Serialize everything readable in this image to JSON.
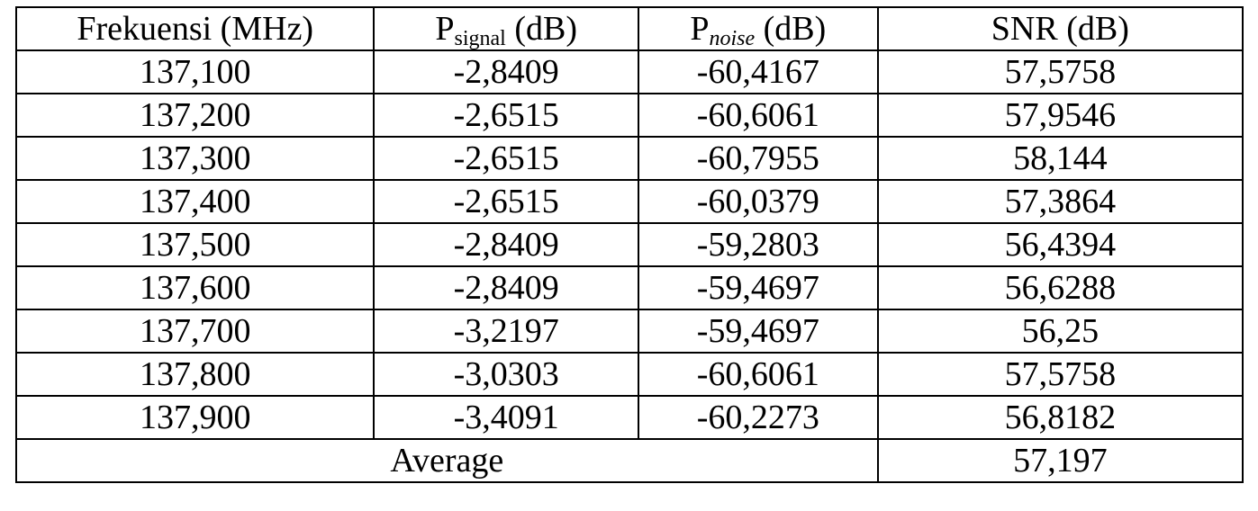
{
  "table": {
    "header": [
      {
        "main": "Frekuensi (MHz)"
      },
      {
        "main": "P",
        "sub": "signal",
        "unit": " (dB)"
      },
      {
        "main": "P",
        "sub": "noise",
        "unit": " (dB)"
      },
      {
        "main": "SNR (dB)"
      }
    ],
    "rows": [
      [
        "137,100",
        "-2,8409",
        "-60,4167",
        "57,5758"
      ],
      [
        "137,200",
        "-2,6515",
        "-60,6061",
        "57,9546"
      ],
      [
        "137,300",
        "-2,6515",
        "-60,7955",
        "58,144"
      ],
      [
        "137,400",
        "-2,6515",
        "-60,0379",
        "57,3864"
      ],
      [
        "137,500",
        "-2,8409",
        "-59,2803",
        "56,4394"
      ],
      [
        "137,600",
        "-2,8409",
        "-59,4697",
        "56,6288"
      ],
      [
        "137,700",
        "-3,2197",
        "-59,4697",
        "56,25"
      ],
      [
        "137,800",
        "-3,0303",
        "-60,6061",
        "57,5758"
      ],
      [
        "137,900",
        "-3,4091",
        "-60,2273",
        "56,8182"
      ]
    ],
    "footer": {
      "label": "Average",
      "value": "57,197"
    }
  }
}
